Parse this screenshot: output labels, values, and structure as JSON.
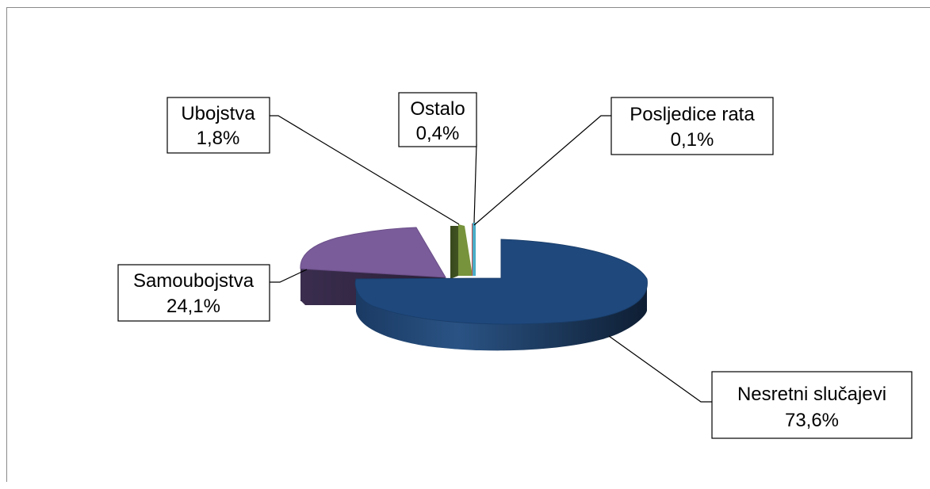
{
  "chart_data": {
    "type": "pie",
    "style": "3d-exploded",
    "legend": "none",
    "slices": [
      {
        "label": "Nesretni slučajevi",
        "value": 73.6,
        "value_text": "73,6%",
        "color": "#1F497D"
      },
      {
        "label": "Samoubojstva",
        "value": 24.1,
        "value_text": "24,1%",
        "color": "#8064A2"
      },
      {
        "label": "Ubojstva",
        "value": 1.8,
        "value_text": "1,8%",
        "color": "#77933C"
      },
      {
        "label": "Ostalo",
        "value": 0.4,
        "value_text": "0,4%",
        "color": "#C0504D"
      },
      {
        "label": "Posljedice rata",
        "value": 0.1,
        "value_text": "0,1%",
        "color": "#4BACC6"
      }
    ]
  }
}
